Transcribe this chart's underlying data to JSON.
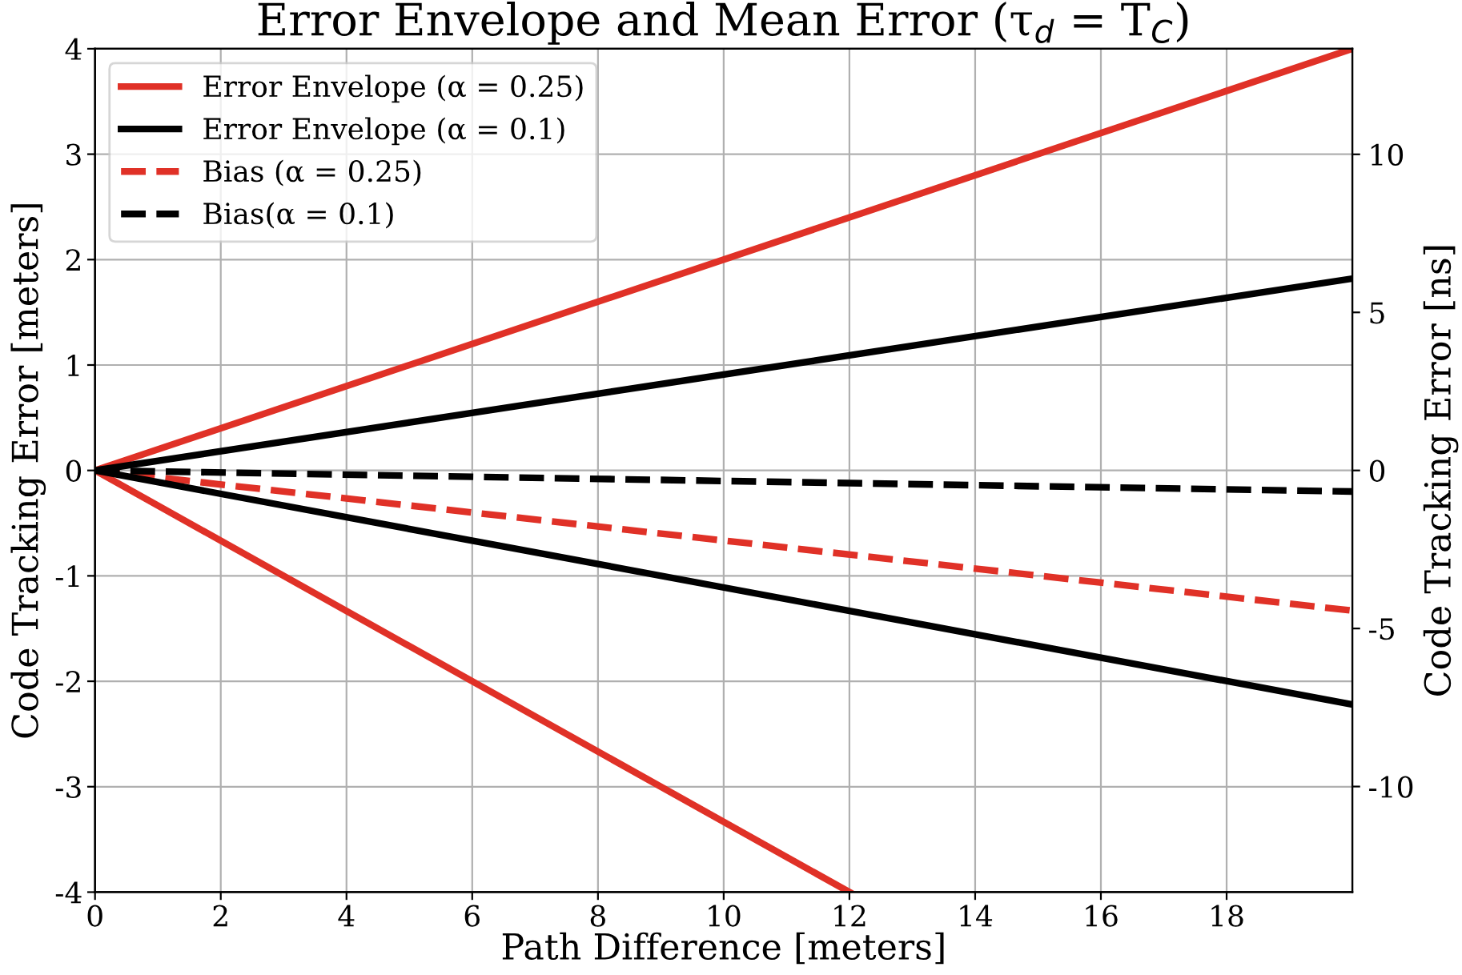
{
  "chart_data": {
    "type": "line",
    "title": "Error Envelope and Mean Error (τ$_{d}$ = T$_{C}$)",
    "xlabel": "Path Difference [meters]",
    "ylabel": "Code Tracking Error [meters]",
    "y2label": "Code Tracking Error [ns]",
    "series": [
      {
        "name": "Error Envelope (α = 0.25)",
        "color": "#e03127",
        "x": [
          0,
          20
        ],
        "values": [
          0,
          4
        ]
      },
      {
        "name": "Error Envelope (α = 0.1)",
        "color": "#000000",
        "x": [
          0,
          20
        ],
        "values": [
          0,
          1.82
        ]
      },
      {
        "name": "Bias (α = 0.25)",
        "color": "#e03127",
        "x": [
          0,
          20
        ],
        "values": [
          0,
          -1.33
        ],
        "line_style": "dashed"
      },
      {
        "name": "Bias(α = 0.1)",
        "color": "#000000",
        "x": [
          0,
          20
        ],
        "values": [
          0,
          -0.2
        ],
        "line_style": "dashed"
      },
      {
        "color": "#e03127",
        "x": [
          0,
          12
        ],
        "values": [
          0,
          -4
        ]
      },
      {
        "color": "#000000",
        "x": [
          0,
          20
        ],
        "values": [
          0,
          -2.22
        ]
      }
    ],
    "xlim": [
      0,
      20
    ],
    "xticks": [
      0,
      2,
      4,
      6,
      8,
      10,
      12,
      14,
      16,
      18
    ],
    "ylim": [
      -4,
      4
    ],
    "yticks": [
      -4,
      -3,
      -2,
      -1,
      0,
      1,
      2,
      3,
      4
    ],
    "y2lim": [
      -13.34,
      13.34
    ],
    "y2ticks": [
      -10,
      -5,
      0,
      5,
      10
    ],
    "grid": true,
    "legend": "top left"
  }
}
